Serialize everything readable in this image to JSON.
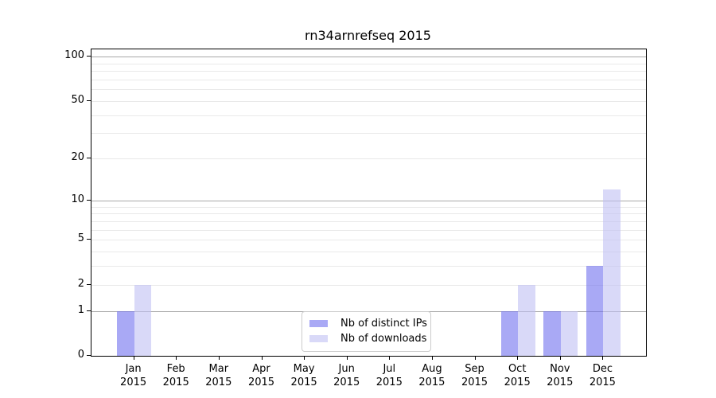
{
  "chart_data": {
    "type": "bar",
    "title": "rn34arnrefseq 2015",
    "categories": [
      "Jan 2015",
      "Feb 2015",
      "Mar 2015",
      "Apr 2015",
      "May 2015",
      "Jun 2015",
      "Jul 2015",
      "Aug 2015",
      "Sep 2015",
      "Oct 2015",
      "Nov 2015",
      "Dec 2015"
    ],
    "series": [
      {
        "name": "Nb of distinct IPs",
        "color": "#7070ee",
        "values": [
          1,
          0,
          0,
          0,
          0,
          0,
          0,
          0,
          0,
          1,
          1,
          3
        ]
      },
      {
        "name": "Nb of downloads",
        "color": "#c0c0f3",
        "values": [
          2,
          0,
          0,
          0,
          0,
          0,
          0,
          0,
          0,
          2,
          1,
          12
        ]
      }
    ],
    "xlabel": "",
    "ylabel": "",
    "y_scale": "log1p",
    "ylim": [
      0,
      112
    ],
    "y_ticks": [
      100,
      50,
      20,
      10,
      5,
      2,
      1,
      0
    ],
    "grid": {
      "on": true,
      "major": [
        1,
        10,
        100
      ],
      "minor": [
        2,
        3,
        4,
        5,
        6,
        7,
        8,
        9,
        20,
        30,
        40,
        50,
        60,
        70,
        80,
        90
      ]
    },
    "legend": {
      "position": "lower center inside plot",
      "entries": [
        "Nb of distinct IPs",
        "Nb of downloads"
      ]
    }
  },
  "colors": {
    "bar_distinct_ips": "#7070ee",
    "bar_downloads": "#c0c0f3",
    "grid_major": "#a8a8a8",
    "grid_minor": "#e9e9e9",
    "axis": "#000000",
    "background": "#ffffff"
  }
}
